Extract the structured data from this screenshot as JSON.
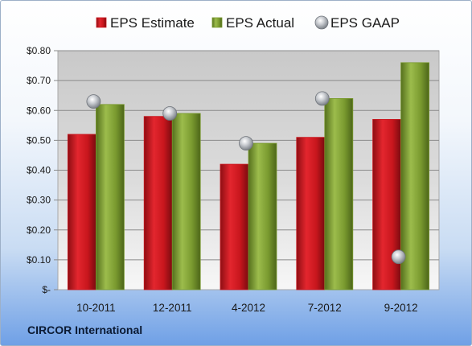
{
  "company": "CIRCOR International",
  "colors": {
    "estimate": "#c8161d",
    "actual": "#7a9a2f",
    "gaap": "#b8bcc2"
  },
  "chart_data": {
    "type": "bar",
    "categories": [
      "10-2011",
      "12-2011",
      "4-2012",
      "7-2012",
      "9-2012"
    ],
    "series": [
      {
        "name": "EPS Estimate",
        "kind": "bar",
        "values": [
          0.52,
          0.58,
          0.42,
          0.51,
          0.57
        ]
      },
      {
        "name": "EPS Actual",
        "kind": "bar",
        "values": [
          0.62,
          0.59,
          0.49,
          0.64,
          0.76
        ]
      },
      {
        "name": "EPS GAAP",
        "kind": "marker",
        "values": [
          0.63,
          0.59,
          0.49,
          0.64,
          0.11
        ]
      }
    ],
    "ylim": [
      0,
      0.8
    ],
    "yticks": [
      0,
      0.1,
      0.2,
      0.3,
      0.4,
      0.5,
      0.6,
      0.7,
      0.8
    ],
    "ytick_labels": [
      "$-",
      "$0.10",
      "$0.20",
      "$0.30",
      "$0.40",
      "$0.50",
      "$0.60",
      "$0.70",
      "$0.80"
    ],
    "grid": true,
    "legend_position": "top"
  }
}
